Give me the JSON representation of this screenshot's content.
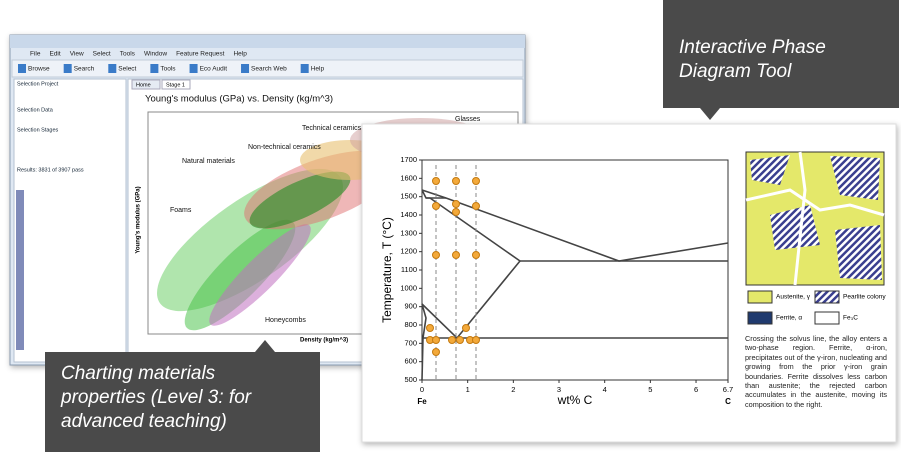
{
  "callouts": {
    "phase": "Interactive Phase Diagram Tool",
    "charting": "Charting materials properties (Level 3: for advanced teaching)"
  },
  "app_window": {
    "menu": [
      "File",
      "Edit",
      "View",
      "Select",
      "Tools",
      "Window",
      "Feature Request",
      "Help"
    ],
    "toolbar": [
      "Browse",
      "Search",
      "Select",
      "Tools",
      "Eco Audit",
      "Search Web",
      "Help"
    ],
    "tabs": [
      "Home",
      "Stage 1"
    ],
    "panel": [
      "Selection Project",
      "Selection Data",
      "Selection Stages",
      "Results: 3831 of 3907 pass"
    ],
    "chart_title": "Young's modulus (GPa) vs. Density (kg/m^3)",
    "y_label": "Young's modulus (GPa)",
    "x_label": "Density (kg/m^3)",
    "family_labels": [
      "Technical ceramics",
      "Glasses",
      "Non-technical ceramics",
      "Natural materials",
      "Foams",
      "Honeycombs"
    ]
  },
  "phase_diagram": {
    "y_label": "Temperature, T  (°C)",
    "x_label": "wt% C",
    "ylim": [
      500,
      1700
    ],
    "yticks": [
      500,
      600,
      700,
      800,
      900,
      1000,
      1100,
      1200,
      1300,
      1400,
      1500,
      1600,
      1700
    ],
    "xlim": [
      0,
      6.7
    ],
    "xticks": [
      0,
      1,
      2,
      3,
      4,
      5,
      6,
      6.7
    ],
    "end_labels": [
      "Fe",
      "C"
    ],
    "legend": [
      "Austenite, γ",
      "Pearlite colony",
      "Ferrite, α",
      "Fe₃C"
    ],
    "description": "Crossing the solvus line, the alloy enters a two-phase region. Ferrite, α-iron, precipitates out of the γ-iron, nucleating and growing from the prior γ-iron grain boundaries. Ferrite dissolves less carbon than austenite; the rejected carbon accumulates in the austenite, moving its composition to the right."
  }
}
